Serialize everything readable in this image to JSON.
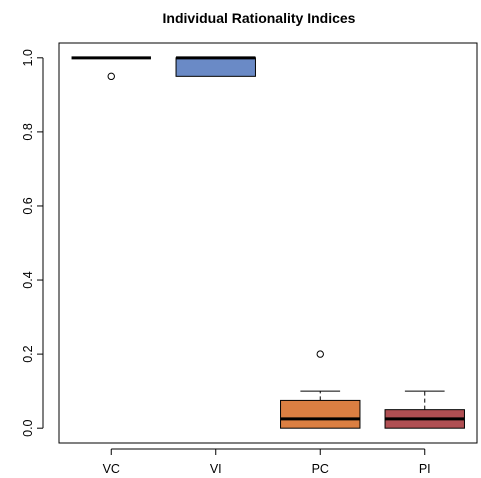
{
  "chart_data": {
    "type": "boxplot",
    "title": "Individual Rationality Indices",
    "xlabel": "",
    "ylabel": "",
    "ylim": [
      -0.04,
      1.04
    ],
    "yticks": [
      "0.0",
      "0.2",
      "0.4",
      "0.6",
      "0.8",
      "1.0"
    ],
    "categories": [
      "VC",
      "VI",
      "PC",
      "PI"
    ],
    "boxes": [
      {
        "name": "VC",
        "color": "#ffffff",
        "min": 1.0,
        "q1": 1.0,
        "median": 1.0,
        "q3": 1.0,
        "max": 1.0,
        "outliers": [
          0.95
        ]
      },
      {
        "name": "VI",
        "color": "#6a8ac6",
        "min": 0.95,
        "q1": 0.95,
        "median": 1.0,
        "q3": 1.0,
        "max": 1.0,
        "outliers": []
      },
      {
        "name": "PC",
        "color": "#db7f42",
        "min": 0.0,
        "q1": 0.0,
        "median": 0.025,
        "q3": 0.075,
        "max": 0.1,
        "outliers": [
          0.2
        ]
      },
      {
        "name": "PI",
        "color": "#b04f53",
        "min": 0.0,
        "q1": 0.0,
        "median": 0.025,
        "q3": 0.05,
        "max": 0.1,
        "outliers": []
      }
    ]
  }
}
